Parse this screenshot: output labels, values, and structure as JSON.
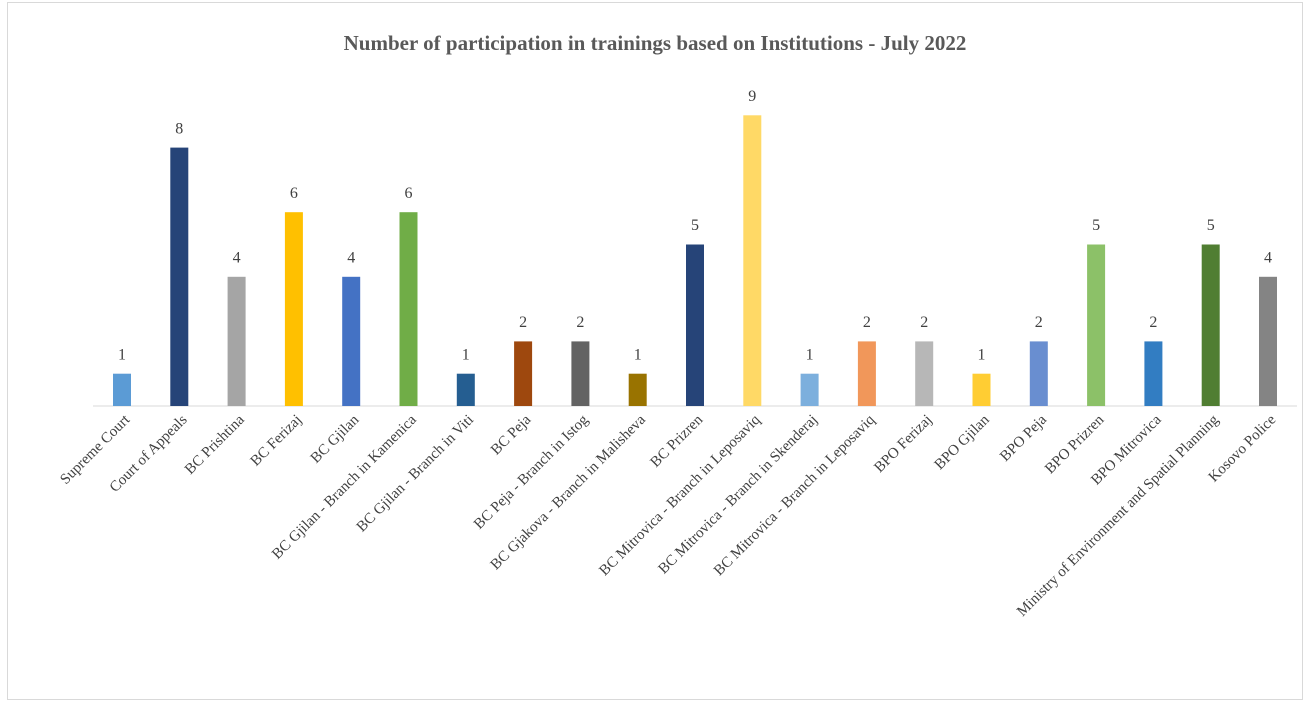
{
  "chart_data": {
    "type": "bar",
    "title": "Number of participation  in trainings  based on Institutions  - July 2022",
    "categories": [
      "Supreme Court",
      "Court of Appeals",
      "BC Prishtina",
      "BC Ferizaj",
      "BC Gjilan",
      "BC Gjilan - Branch in Kamenica",
      "BC Gjilan - Branch in Viti",
      "BC Peja",
      "BC Peja - Branch in Istog",
      "BC Gjakova  - Branch in Malisheva",
      "BC Prizren",
      "BC Mitrovica - Branch in Leposaviq",
      "BC Mitrovica - Branch in Skenderaj",
      "BC Mitrovica - Branch in Leposaviq",
      "BPO Ferizaj",
      "BPO Gjilan",
      "BPO Peja",
      "BPO Prizren",
      "BPO Mitrovica",
      "Ministry of Environment and Spatial Planning",
      "Kosovo Police"
    ],
    "values": [
      1,
      8,
      4,
      6,
      4,
      6,
      1,
      2,
      2,
      1,
      5,
      9,
      1,
      2,
      2,
      1,
      2,
      5,
      2,
      5,
      4
    ],
    "colors": [
      "#5b9bd5",
      "#264478",
      "#a5a5a5",
      "#ffc000",
      "#4472c4",
      "#70ad47",
      "#255e91",
      "#9e480e",
      "#636363",
      "#997300",
      "#264478",
      "#ffd966",
      "#7cafdd",
      "#f1975a",
      "#b7b7b7",
      "#ffcd33",
      "#698ed0",
      "#8cc168",
      "#327dc2",
      "#507e32",
      "#848484"
    ],
    "ylim": [
      0,
      10
    ],
    "grid": false
  }
}
